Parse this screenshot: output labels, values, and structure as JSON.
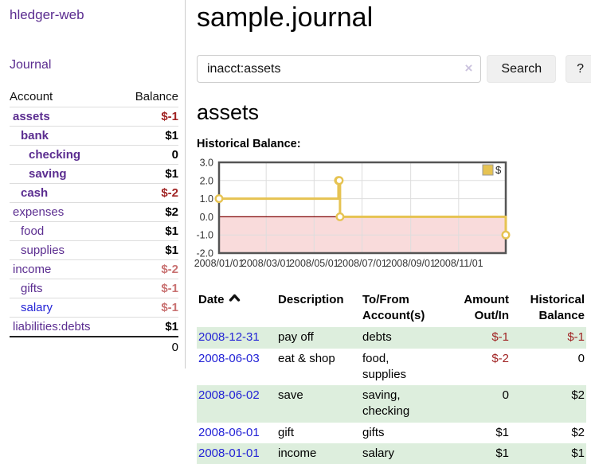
{
  "app": {
    "title": "hledger-web"
  },
  "colors": {
    "link_purple": "#5b2d90",
    "link_blue": "#2323d6",
    "negative": "#a02323",
    "negative_faint": "#c97272",
    "row_stripe_green": "#ddeedd",
    "chart_gold": "#e6c352"
  },
  "sidebar": {
    "journal_link": "Journal",
    "accounts": {
      "header_account": "Account",
      "header_balance": "Balance",
      "rows": [
        {
          "account": "assets",
          "balance": "$-1",
          "depth": 1,
          "bold": true,
          "link_color": "purple",
          "balance_style": "neg"
        },
        {
          "account": "bank",
          "balance": "$1",
          "depth": 2,
          "bold": true,
          "link_color": "purple",
          "balance_style": "pos"
        },
        {
          "account": "checking",
          "balance": "0",
          "depth": 3,
          "bold": true,
          "link_color": "purple",
          "balance_style": "pos"
        },
        {
          "account": "saving",
          "balance": "$1",
          "depth": 3,
          "bold": true,
          "link_color": "purple",
          "balance_style": "pos"
        },
        {
          "account": "cash",
          "balance": "$-2",
          "depth": 2,
          "bold": true,
          "link_color": "purple",
          "balance_style": "neg"
        },
        {
          "account": "expenses",
          "balance": "$2",
          "depth": 1,
          "bold": false,
          "link_color": "purple",
          "balance_style": "pos"
        },
        {
          "account": "food",
          "balance": "$1",
          "depth": 2,
          "bold": false,
          "link_color": "purple",
          "balance_style": "pos"
        },
        {
          "account": "supplies",
          "balance": "$1",
          "depth": 2,
          "bold": false,
          "link_color": "purple",
          "balance_style": "pos"
        },
        {
          "account": "income",
          "balance": "$-2",
          "depth": 1,
          "bold": false,
          "link_color": "purple",
          "balance_style": "negfaint"
        },
        {
          "account": "gifts",
          "balance": "$-1",
          "depth": 2,
          "bold": false,
          "link_color": "purple",
          "balance_style": "negfaint"
        },
        {
          "account": "salary",
          "balance": "$-1",
          "depth": 2,
          "bold": false,
          "link_color": "blue",
          "balance_style": "negfaint"
        },
        {
          "account": "liabilities:debts",
          "balance": "$1",
          "depth": 1,
          "bold": false,
          "link_color": "purple",
          "balance_style": "pos"
        }
      ],
      "total": "0"
    }
  },
  "main": {
    "title": "sample.journal",
    "search": {
      "value": "inacct:assets",
      "clear_icon": "×",
      "button_label": "Search",
      "help_label": "?"
    },
    "account_title": "assets",
    "chart_label": "Historical Balance:"
  },
  "chart_data": {
    "type": "line",
    "step": true,
    "title": "Historical Balance",
    "series": [
      {
        "name": "$",
        "points": [
          [
            "2008-01-01",
            1
          ],
          [
            "2008-06-01",
            2
          ],
          [
            "2008-06-02",
            2
          ],
          [
            "2008-06-03",
            0
          ],
          [
            "2008-12-31",
            -1
          ]
        ]
      }
    ],
    "xrange": [
      "2008-01-01",
      "2008-12-31"
    ],
    "ylim": [
      -2,
      3
    ],
    "yticks": [
      3.0,
      2.0,
      1.0,
      0.0,
      -1.0,
      -2.0
    ],
    "ytick_labels": [
      "3.0",
      "2.0",
      "1.0",
      "0.0",
      "-1.0",
      "-2.0"
    ],
    "xticks": [
      {
        "date": "2008-01-01",
        "label": "2008/01/01"
      },
      {
        "date": "2008-03-01",
        "label": "2008/03/01"
      },
      {
        "date": "2008-05-01",
        "label": "2008/05/01"
      },
      {
        "date": "2008-07-01",
        "label": "2008/07/01"
      },
      {
        "date": "2008-09-01",
        "label": "2008/09/01"
      },
      {
        "date": "2008-11-01",
        "label": "2008/11/01"
      }
    ],
    "grid": true,
    "legend_position": "top-right",
    "legend": [
      "$"
    ],
    "colors": {
      "line": "#e6c352",
      "marker_fill": "#ffffff",
      "negative_area": "#f9dbdb",
      "zero_line": "#7f0000",
      "border": "#545454",
      "gridline": "#dddddd",
      "tick_text": "#333333"
    }
  },
  "register": {
    "sort_icon": "chevron-up",
    "columns": [
      {
        "lines": [
          "Date",
          ""
        ],
        "align": "left",
        "sortable": true
      },
      {
        "lines": [
          "Description",
          ""
        ],
        "align": "left"
      },
      {
        "lines": [
          "To/From",
          "Account(s)"
        ],
        "align": "left"
      },
      {
        "lines": [
          "Amount",
          "Out/In"
        ],
        "align": "right"
      },
      {
        "lines": [
          "Historical",
          "Balance"
        ],
        "align": "right"
      }
    ],
    "rows": [
      {
        "date": "2008-12-31",
        "description": "pay off",
        "accounts": "debts",
        "amount": "$-1",
        "amount_style": "neg",
        "balance": "$-1",
        "balance_style": "neg"
      },
      {
        "date": "2008-06-03",
        "description": "eat & shop",
        "accounts": "food, supplies",
        "amount": "$-2",
        "amount_style": "neg",
        "balance": "0",
        "balance_style": "pos"
      },
      {
        "date": "2008-06-02",
        "description": "save",
        "accounts": "saving, checking",
        "amount": "0",
        "amount_style": "pos",
        "balance": "$2",
        "balance_style": "pos"
      },
      {
        "date": "2008-06-01",
        "description": "gift",
        "accounts": "gifts",
        "amount": "$1",
        "amount_style": "pos",
        "balance": "$2",
        "balance_style": "pos"
      },
      {
        "date": "2008-01-01",
        "description": "income",
        "accounts": "salary",
        "amount": "$1",
        "amount_style": "pos",
        "balance": "$1",
        "balance_style": "pos"
      }
    ]
  }
}
